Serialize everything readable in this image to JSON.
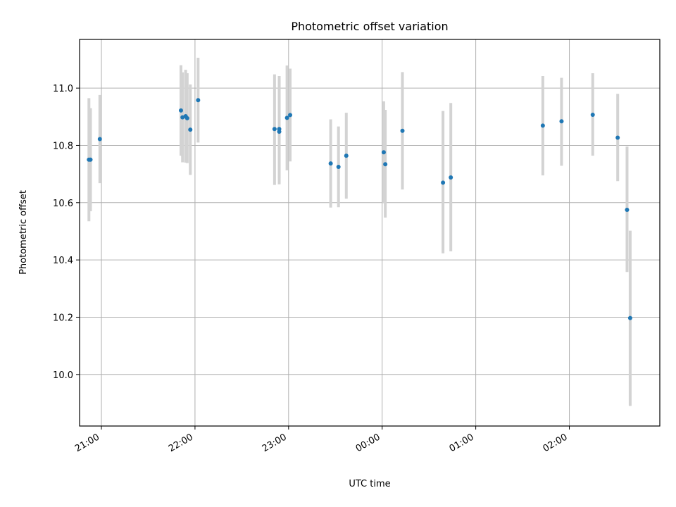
{
  "chart_data": {
    "type": "scatter",
    "title": "Photometric offset variation",
    "xlabel": "UTC time",
    "ylabel": "Photometric offset",
    "x_axis_type": "time",
    "xlim": [
      "20:46",
      "02:58"
    ],
    "ylim": [
      9.82,
      11.17
    ],
    "x_ticks": [
      "21:00",
      "22:00",
      "23:00",
      "00:00",
      "01:00",
      "02:00"
    ],
    "y_ticks": [
      10.0,
      10.2,
      10.4,
      10.6,
      10.8,
      11.0
    ],
    "y_tick_labels": [
      "10.0",
      "10.2",
      "10.4",
      "10.6",
      "10.8",
      "11.0"
    ],
    "grid": true,
    "marker_color": "#1f77b4",
    "errorbar_color": "#d3d3d3",
    "points": [
      {
        "time": "20:52",
        "y": 10.75,
        "ylo": 10.535,
        "yhi": 10.965
      },
      {
        "time": "20:53",
        "y": 10.75,
        "ylo": 10.57,
        "yhi": 10.93
      },
      {
        "time": "20:59",
        "y": 10.822,
        "ylo": 10.668,
        "yhi": 10.976
      },
      {
        "time": "21:51",
        "y": 10.922,
        "ylo": 10.764,
        "yhi": 11.08
      },
      {
        "time": "21:52",
        "y": 10.898,
        "ylo": 10.741,
        "yhi": 11.055
      },
      {
        "time": "21:54",
        "y": 10.902,
        "ylo": 10.74,
        "yhi": 11.064
      },
      {
        "time": "21:55",
        "y": 10.895,
        "ylo": 10.738,
        "yhi": 11.052
      },
      {
        "time": "21:57",
        "y": 10.855,
        "ylo": 10.697,
        "yhi": 11.013
      },
      {
        "time": "22:02",
        "y": 10.958,
        "ylo": 10.81,
        "yhi": 11.106
      },
      {
        "time": "22:51",
        "y": 10.857,
        "ylo": 10.662,
        "yhi": 11.048
      },
      {
        "time": "22:54",
        "y": 10.848,
        "ylo": 10.664,
        "yhi": 11.042
      },
      {
        "time": "22:54",
        "y": 10.857,
        "ylo": 10.685,
        "yhi": 11.03
      },
      {
        "time": "22:59",
        "y": 10.896,
        "ylo": 10.713,
        "yhi": 11.079
      },
      {
        "time": "23:01",
        "y": 10.906,
        "ylo": 10.744,
        "yhi": 11.068
      },
      {
        "time": "23:27",
        "y": 10.737,
        "ylo": 10.583,
        "yhi": 10.891
      },
      {
        "time": "23:32",
        "y": 10.725,
        "ylo": 10.584,
        "yhi": 10.866
      },
      {
        "time": "23:37",
        "y": 10.764,
        "ylo": 10.614,
        "yhi": 10.914
      },
      {
        "time": "00:01",
        "y": 10.776,
        "ylo": 10.598,
        "yhi": 10.954
      },
      {
        "time": "00:02",
        "y": 10.734,
        "ylo": 10.548,
        "yhi": 10.924
      },
      {
        "time": "00:13",
        "y": 10.851,
        "ylo": 10.646,
        "yhi": 11.056
      },
      {
        "time": "00:39",
        "y": 10.67,
        "ylo": 10.423,
        "yhi": 10.92
      },
      {
        "time": "00:44",
        "y": 10.688,
        "ylo": 10.43,
        "yhi": 10.948
      },
      {
        "time": "01:43",
        "y": 10.869,
        "ylo": 10.695,
        "yhi": 11.042
      },
      {
        "time": "01:55",
        "y": 10.884,
        "ylo": 10.729,
        "yhi": 11.036
      },
      {
        "time": "02:15",
        "y": 10.907,
        "ylo": 10.764,
        "yhi": 11.052
      },
      {
        "time": "02:31",
        "y": 10.827,
        "ylo": 10.675,
        "yhi": 10.98
      },
      {
        "time": "02:37",
        "y": 10.575,
        "ylo": 10.358,
        "yhi": 10.796
      },
      {
        "time": "02:39",
        "y": 10.197,
        "ylo": 9.89,
        "yhi": 10.502
      }
    ]
  }
}
